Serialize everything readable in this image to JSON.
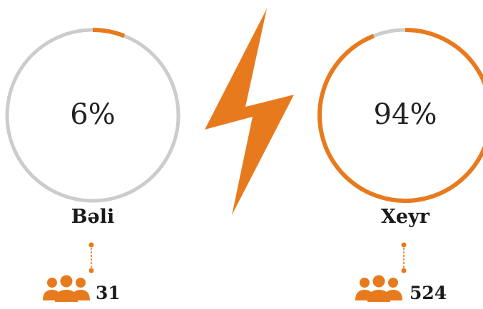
{
  "colors": {
    "accent": "#E87A1E",
    "track": "#CCCCCC"
  },
  "chart_data": {
    "type": "pie",
    "categories": [
      "Bəli",
      "Xeyr"
    ],
    "values": [
      6,
      94
    ],
    "percent_labels": [
      "6%",
      "94%"
    ],
    "counts": [
      "31",
      "524"
    ],
    "icons": [
      "users-group-icon",
      "lightning-bolt-icon",
      "connector-dots-icon"
    ]
  }
}
